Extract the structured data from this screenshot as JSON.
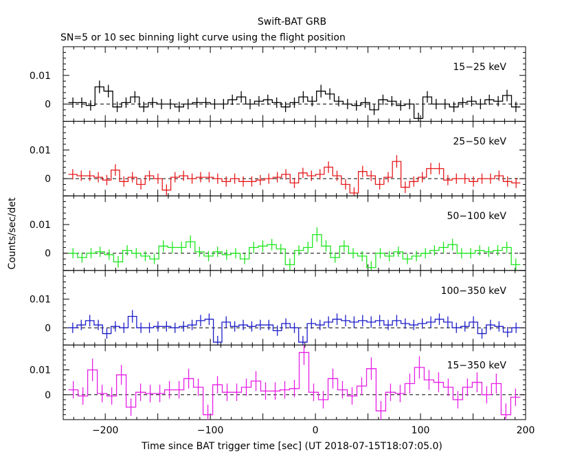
{
  "title": "Swift-BAT GRB",
  "subtitle": "SN=5 or 10 sec binning light curve using the flight position",
  "colors": {
    "frame": "#000000",
    "zero_line": "#000000"
  },
  "chart_data": {
    "type": "line",
    "style": "step-with-errorbars",
    "xlabel": "Time since BAT trigger time [sec] (UT 2018-07-15T18:07:05.0)",
    "ylabel": "Counts/sec/det",
    "xlim": [
      -240,
      200
    ],
    "x_ticks": [
      -200,
      -100,
      0,
      100,
      200
    ],
    "x_tick_labels": [
      "−200",
      "−100",
      "0",
      "100",
      "200"
    ],
    "panels": [
      {
        "name": "15-25 keV",
        "label": "15−25 keV",
        "color": "#000000",
        "ylim": [
          -0.006,
          0.02
        ],
        "y_ticks": [
          0,
          0.01
        ],
        "y_tick_labels": [
          "0",
          "0.01"
        ],
        "values": [
          0.0005,
          0.0005,
          -0.0005,
          0.006,
          0.0045,
          -0.001,
          0.0005,
          0.0025,
          -0.001,
          0.0005,
          0,
          0,
          -0.001,
          0,
          0.0005,
          0.0005,
          0,
          0,
          0.0015,
          0.0025,
          0,
          0.001,
          0.0015,
          0.0005,
          -0.001,
          0.0005,
          0.0025,
          0.001,
          0.0045,
          0.0035,
          0.001,
          0,
          -0.0005,
          0.0005,
          -0.002,
          0.0015,
          0.001,
          -0.0005,
          0,
          -0.005,
          0.0025,
          0,
          0,
          -0.001,
          0.0005,
          0.001,
          0,
          0.0015,
          0.001,
          0.003,
          -0.001
        ],
        "errors": [
          0.0018,
          0.0018,
          0.0018,
          0.0022,
          0.0022,
          0.0018,
          0.0018,
          0.002,
          0.0018,
          0.0018,
          0.0018,
          0.0018,
          0.0018,
          0.0018,
          0.0018,
          0.0018,
          0.0018,
          0.0018,
          0.0018,
          0.002,
          0.0018,
          0.0018,
          0.0018,
          0.0018,
          0.0018,
          0.0018,
          0.002,
          0.0018,
          0.0022,
          0.002,
          0.0018,
          0.0018,
          0.0018,
          0.0018,
          0.0018,
          0.0018,
          0.0018,
          0.0018,
          0.0018,
          0.002,
          0.002,
          0.0018,
          0.0018,
          0.0018,
          0.0018,
          0.0018,
          0.0018,
          0.0018,
          0.0018,
          0.002,
          0.0018
        ]
      },
      {
        "name": "25-50 keV",
        "label": "25−50 keV",
        "color": "#e6191b",
        "ylim": [
          -0.006,
          0.02
        ],
        "y_ticks": [
          0,
          0.01
        ],
        "y_tick_labels": [
          "0",
          "0.01"
        ],
        "values": [
          0.0015,
          0.001,
          0.001,
          0.0005,
          -0.0005,
          0.003,
          -0.001,
          0.0005,
          -0.002,
          0.001,
          0,
          -0.004,
          0.0005,
          0.001,
          0,
          0.0005,
          0.0005,
          0,
          -0.001,
          0,
          -0.001,
          -0.001,
          -0.0005,
          0,
          0.0005,
          0.0015,
          -0.0015,
          0.002,
          0.001,
          0.0015,
          0.004,
          0.001,
          -0.002,
          -0.005,
          0.0025,
          0.001,
          -0.002,
          0.0005,
          0.006,
          -0.003,
          -0.001,
          0.0005,
          0.0035,
          0.0035,
          -0.0005,
          0,
          0,
          -0.001,
          0,
          0,
          0.001,
          -0.001,
          -0.0015
        ],
        "errors": [
          0.0018,
          0.0018,
          0.0018,
          0.0018,
          0.0018,
          0.002,
          0.0018,
          0.0018,
          0.0018,
          0.0018,
          0.0018,
          0.002,
          0.0018,
          0.0018,
          0.0018,
          0.0018,
          0.0018,
          0.0018,
          0.0018,
          0.0018,
          0.0018,
          0.0018,
          0.0018,
          0.0018,
          0.0018,
          0.0018,
          0.0018,
          0.0018,
          0.0018,
          0.0018,
          0.002,
          0.0018,
          0.0018,
          0.002,
          0.002,
          0.0018,
          0.0018,
          0.0018,
          0.0022,
          0.002,
          0.0018,
          0.0018,
          0.002,
          0.002,
          0.0018,
          0.0018,
          0.0018,
          0.0018,
          0.0018,
          0.0018,
          0.0018,
          0.0018,
          0.0018
        ]
      },
      {
        "name": "50-100 keV",
        "label": "50−100 keV",
        "color": "#1ee61e",
        "ylim": [
          -0.006,
          0.02
        ],
        "y_ticks": [
          0,
          0.01
        ],
        "y_tick_labels": [
          "0",
          "0.01"
        ],
        "values": [
          0,
          -0.0015,
          0,
          0.0005,
          -0.0005,
          -0.003,
          0.001,
          0,
          -0.001,
          -0.002,
          0.0025,
          0.002,
          0.002,
          0.004,
          0.0005,
          -0.001,
          0.0005,
          -0.0005,
          0,
          -0.002,
          0.002,
          0.0025,
          0.003,
          0.0015,
          -0.004,
          0.001,
          0.002,
          0.0065,
          0.0025,
          -0.0015,
          0.0025,
          0,
          -0.001,
          -0.005,
          0,
          -0.001,
          0.0005,
          -0.002,
          -0.001,
          0,
          0.001,
          0.002,
          0.003,
          0,
          0,
          0.001,
          0.0005,
          0.001,
          0.002,
          -0.004
        ],
        "errors": [
          0.0018,
          0.0018,
          0.0018,
          0.0018,
          0.0018,
          0.002,
          0.0018,
          0.0018,
          0.0018,
          0.0018,
          0.002,
          0.002,
          0.002,
          0.0022,
          0.0018,
          0.0018,
          0.0018,
          0.0018,
          0.0018,
          0.0018,
          0.002,
          0.002,
          0.002,
          0.0018,
          0.0022,
          0.0018,
          0.002,
          0.0025,
          0.002,
          0.0018,
          0.002,
          0.0018,
          0.0018,
          0.0022,
          0.0018,
          0.0018,
          0.0018,
          0.0018,
          0.0018,
          0.0018,
          0.0018,
          0.002,
          0.002,
          0.0018,
          0.0018,
          0.0018,
          0.0018,
          0.0018,
          0.002,
          0.0022
        ]
      },
      {
        "name": "100-350 keV",
        "label": "100−350 keV",
        "color": "#1c1cc8",
        "ylim": [
          -0.006,
          0.02
        ],
        "y_ticks": [
          0,
          0.01
        ],
        "y_tick_labels": [
          "0",
          "0.01"
        ],
        "values": [
          0,
          0.001,
          0.0025,
          0.001,
          -0.002,
          0.0005,
          0,
          0.004,
          0,
          0,
          0.0005,
          0.0005,
          0,
          0.0005,
          0.001,
          0.0025,
          0.003,
          -0.005,
          0.002,
          0.0005,
          0.001,
          0.0005,
          0.001,
          0.001,
          -0.001,
          0.0015,
          0,
          -0.005,
          0.0015,
          0.001,
          0.002,
          0.003,
          0.0025,
          0.002,
          0.0025,
          0.002,
          0.0025,
          0.001,
          0.0025,
          0.0015,
          0.001,
          0.0015,
          0.002,
          0.003,
          0.002,
          0,
          0.0005,
          0.002,
          -0.002,
          0.001,
          0.0005,
          -0.0015,
          0
        ],
        "errors": [
          0.0018,
          0.0018,
          0.002,
          0.0018,
          0.0018,
          0.0018,
          0.0018,
          0.0022,
          0.0018,
          0.0018,
          0.0018,
          0.0018,
          0.0018,
          0.0018,
          0.0018,
          0.002,
          0.002,
          0.0022,
          0.002,
          0.0018,
          0.0018,
          0.0018,
          0.0018,
          0.0018,
          0.0018,
          0.0018,
          0.0018,
          0.0022,
          0.0018,
          0.0018,
          0.002,
          0.002,
          0.002,
          0.002,
          0.002,
          0.002,
          0.002,
          0.0018,
          0.002,
          0.0018,
          0.0018,
          0.0018,
          0.002,
          0.002,
          0.002,
          0.0018,
          0.0018,
          0.002,
          0.0018,
          0.0018,
          0.0018,
          0.0018,
          0.0018
        ]
      },
      {
        "name": "15-350 keV",
        "label": "15−350 keV",
        "color": "#e61ee6",
        "ylim": [
          -0.01,
          0.02
        ],
        "y_ticks": [
          0,
          0.01
        ],
        "y_tick_labels": [
          "0",
          "0.01"
        ],
        "values": [
          0.002,
          -0.0005,
          0.01,
          0.0005,
          -0.0005,
          0.008,
          -0.005,
          0.001,
          0.0005,
          0.0005,
          0.002,
          0.002,
          0.0065,
          0.003,
          -0.008,
          0.004,
          0.001,
          0.001,
          0.003,
          0.0055,
          0.0015,
          0.0015,
          0.002,
          0.0025,
          0.017,
          0.001,
          -0.002,
          0.0065,
          0.002,
          -0.0005,
          0.0035,
          0.0105,
          -0.0065,
          0.001,
          0.0005,
          0.0045,
          0.011,
          0.006,
          0.005,
          0.003,
          -0.002,
          0.003,
          0.005,
          0,
          0.0045,
          -0.008,
          -0.001
        ],
        "errors": [
          0.0035,
          0.0035,
          0.0045,
          0.0035,
          0.0035,
          0.004,
          0.0035,
          0.0035,
          0.0035,
          0.0035,
          0.0035,
          0.0035,
          0.004,
          0.0035,
          0.004,
          0.0035,
          0.0035,
          0.0035,
          0.0035,
          0.004,
          0.0035,
          0.0035,
          0.0035,
          0.0035,
          0.005,
          0.0035,
          0.0035,
          0.004,
          0.0035,
          0.0035,
          0.0035,
          0.0045,
          0.004,
          0.0035,
          0.0035,
          0.004,
          0.0045,
          0.004,
          0.004,
          0.0035,
          0.0035,
          0.0035,
          0.004,
          0.0035,
          0.004,
          0.0045,
          0.0035
        ]
      }
    ]
  }
}
